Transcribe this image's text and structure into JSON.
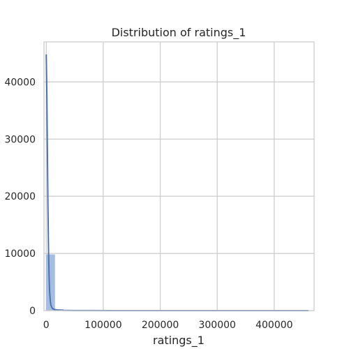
{
  "chart_data": {
    "type": "bar",
    "title": "Distribution of ratings_1",
    "xlabel": "ratings_1",
    "ylabel": "",
    "xlim": [
      -4000,
      470000
    ],
    "ylim": [
      0,
      47000
    ],
    "xticks": [
      0,
      100000,
      200000,
      300000,
      400000
    ],
    "yticks": [
      0,
      10000,
      20000,
      30000,
      40000
    ],
    "xtick_labels": [
      "0",
      "100000",
      "200000",
      "300000",
      "400000"
    ],
    "ytick_labels": [
      "0",
      "10000",
      "20000",
      "30000",
      "40000"
    ],
    "grid": true,
    "histogram": {
      "bins": [
        {
          "x0": 0,
          "x1": 15000,
          "count": 9800
        },
        {
          "x0": 15000,
          "x1": 30000,
          "count": 220
        },
        {
          "x0": 30000,
          "x1": 45000,
          "count": 80
        },
        {
          "x0": 45000,
          "x1": 60000,
          "count": 40
        },
        {
          "x0": 60000,
          "x1": 75000,
          "count": 20
        },
        {
          "x0": 75000,
          "x1": 90000,
          "count": 10
        },
        {
          "x0": 90000,
          "x1": 105000,
          "count": 8
        },
        {
          "x0": 105000,
          "x1": 120000,
          "count": 5
        },
        {
          "x0": 120000,
          "x1": 135000,
          "count": 4
        },
        {
          "x0": 135000,
          "x1": 150000,
          "count": 3
        },
        {
          "x0": 150000,
          "x1": 165000,
          "count": 2
        },
        {
          "x0": 165000,
          "x1": 180000,
          "count": 2
        },
        {
          "x0": 180000,
          "x1": 195000,
          "count": 1
        },
        {
          "x0": 195000,
          "x1": 210000,
          "count": 1
        },
        {
          "x0": 210000,
          "x1": 225000,
          "count": 1
        },
        {
          "x0": 225000,
          "x1": 240000,
          "count": 1
        },
        {
          "x0": 240000,
          "x1": 255000,
          "count": 0
        },
        {
          "x0": 255000,
          "x1": 270000,
          "count": 0
        },
        {
          "x0": 270000,
          "x1": 285000,
          "count": 1
        },
        {
          "x0": 285000,
          "x1": 300000,
          "count": 0
        },
        {
          "x0": 300000,
          "x1": 315000,
          "count": 0
        },
        {
          "x0": 315000,
          "x1": 330000,
          "count": 0
        },
        {
          "x0": 330000,
          "x1": 345000,
          "count": 1
        },
        {
          "x0": 345000,
          "x1": 360000,
          "count": 0
        },
        {
          "x0": 360000,
          "x1": 375000,
          "count": 0
        },
        {
          "x0": 375000,
          "x1": 390000,
          "count": 0
        },
        {
          "x0": 390000,
          "x1": 405000,
          "count": 0
        },
        {
          "x0": 405000,
          "x1": 420000,
          "count": 0
        },
        {
          "x0": 420000,
          "x1": 435000,
          "count": 0
        },
        {
          "x0": 435000,
          "x1": 450000,
          "count": 0
        },
        {
          "x0": 450000,
          "x1": 465000,
          "count": 1
        }
      ]
    },
    "kde": {
      "x": [
        0,
        1000,
        2000,
        3000,
        4000,
        5000,
        6000,
        7000,
        8000,
        10000,
        12000,
        15000,
        20000,
        30000,
        50000,
        80000,
        120000,
        200000,
        300000,
        400000,
        460000
      ],
      "y": [
        44800,
        38000,
        28000,
        18000,
        10500,
        6000,
        3200,
        1800,
        1000,
        500,
        300,
        180,
        100,
        50,
        20,
        8,
        4,
        2,
        1,
        1,
        0
      ]
    },
    "colors": {
      "bar_fill": "#a4bde0",
      "bar_stroke": "#a4bde0",
      "line": "#4c72b0",
      "grid": "#cccccc",
      "frame": "#cccccc",
      "text": "#262626"
    }
  }
}
